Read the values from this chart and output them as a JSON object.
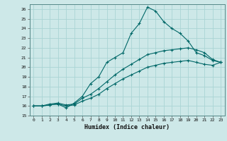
{
  "xlabel": "Humidex (Indice chaleur)",
  "background_color": "#cde8e8",
  "grid_color": "#aad4d4",
  "line_color": "#006868",
  "xlim": [
    -0.5,
    23.5
  ],
  "ylim": [
    15,
    26.5
  ],
  "xticks": [
    0,
    1,
    2,
    3,
    4,
    5,
    6,
    7,
    8,
    9,
    10,
    11,
    12,
    13,
    14,
    15,
    16,
    17,
    18,
    19,
    20,
    21,
    22,
    23
  ],
  "yticks": [
    15,
    16,
    17,
    18,
    19,
    20,
    21,
    22,
    23,
    24,
    25,
    26
  ],
  "line1_x": [
    0,
    1,
    2,
    3,
    4,
    5,
    6,
    7,
    8,
    9,
    10,
    11,
    12,
    13,
    14,
    15,
    16,
    17,
    18,
    19,
    20,
    21,
    22,
    23
  ],
  "line1_y": [
    16.0,
    16.0,
    16.1,
    16.2,
    15.8,
    16.3,
    17.0,
    18.3,
    19.0,
    20.5,
    21.0,
    21.5,
    23.5,
    24.5,
    26.2,
    25.8,
    24.7,
    24.0,
    23.5,
    22.7,
    21.5,
    21.2,
    20.7,
    20.5
  ],
  "line2_x": [
    0,
    1,
    2,
    3,
    4,
    5,
    6,
    7,
    8,
    9,
    10,
    11,
    12,
    13,
    14,
    15,
    16,
    17,
    18,
    19,
    20,
    21,
    22,
    23
  ],
  "line2_y": [
    16.0,
    16.0,
    16.2,
    16.3,
    16.1,
    16.2,
    16.8,
    17.2,
    17.8,
    18.5,
    19.2,
    19.8,
    20.3,
    20.8,
    21.3,
    21.5,
    21.7,
    21.8,
    21.9,
    22.0,
    21.8,
    21.5,
    20.8,
    20.5
  ],
  "line3_x": [
    0,
    1,
    2,
    3,
    4,
    5,
    6,
    7,
    8,
    9,
    10,
    11,
    12,
    13,
    14,
    15,
    16,
    17,
    18,
    19,
    20,
    21,
    22,
    23
  ],
  "line3_y": [
    16.0,
    16.0,
    16.1,
    16.2,
    16.0,
    16.1,
    16.5,
    16.8,
    17.2,
    17.8,
    18.3,
    18.8,
    19.2,
    19.6,
    20.0,
    20.2,
    20.4,
    20.5,
    20.6,
    20.7,
    20.5,
    20.3,
    20.2,
    20.5
  ],
  "tick_fontsize": 4.5,
  "xlabel_fontsize": 6.0
}
